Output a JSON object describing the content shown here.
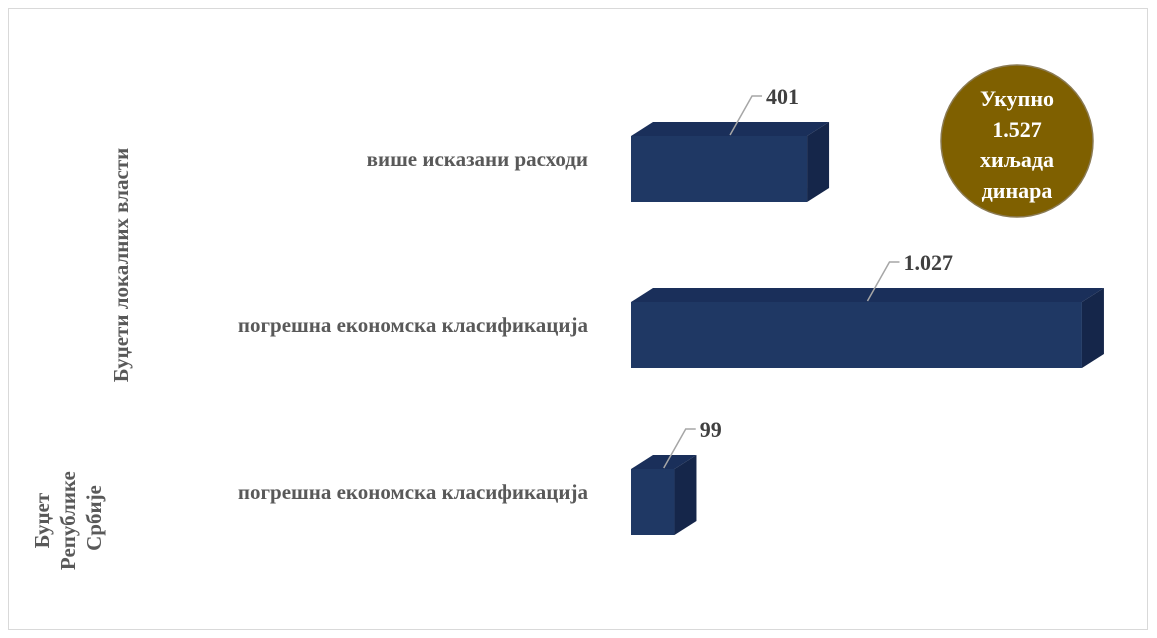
{
  "chart_data": {
    "type": "bar",
    "orientation": "horizontal",
    "style": "3d",
    "groups": [
      {
        "label": "Буџети локалних власти",
        "lines": [
          "Буџети локалних власти"
        ]
      },
      {
        "label": "Буџет Републике Србије",
        "lines": [
          "Буџет",
          "Републике",
          "Србије"
        ]
      }
    ],
    "categories": [
      "више исказани расходи",
      "погрешна економска класификација",
      "погрешна економска класификација"
    ],
    "values": [
      401,
      1027,
      99
    ],
    "value_labels": [
      "401",
      "1.027",
      "99"
    ],
    "xlim": [
      0,
      1100
    ],
    "bar_color": "#1f3864",
    "total_badge": {
      "lines": [
        "Укупно",
        "1.527",
        "хиљада",
        "динара"
      ],
      "color": "#7f6000"
    }
  }
}
